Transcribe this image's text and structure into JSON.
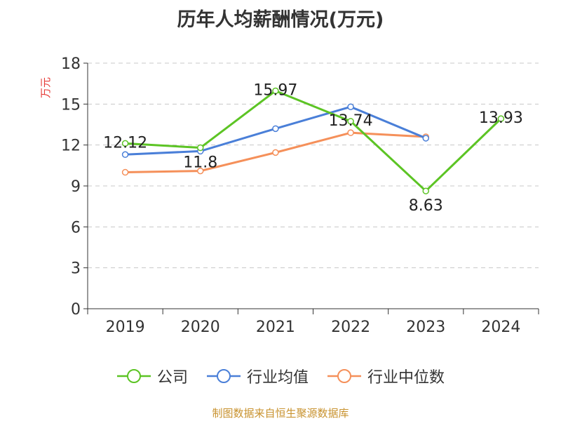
{
  "chart_data": {
    "type": "line",
    "title": "历年人均薪酬情况(万元)",
    "ylabel": "万元",
    "categories": [
      "2019",
      "2020",
      "2021",
      "2022",
      "2023",
      "2024"
    ],
    "ylim": [
      0,
      18
    ],
    "yticks": [
      0,
      3,
      6,
      9,
      12,
      15,
      18
    ],
    "grid": true,
    "legend_position": "bottom",
    "series": [
      {
        "name": "公司",
        "color": "#5cc424",
        "values": [
          12.12,
          11.8,
          15.97,
          13.74,
          8.63,
          13.93
        ],
        "labels": [
          "12.12",
          "11.8",
          "15.97",
          "13.74",
          "8.63",
          "13.93"
        ]
      },
      {
        "name": "行业均值",
        "color": "#4a7fd8",
        "values": [
          11.3,
          11.55,
          13.2,
          14.8,
          12.5,
          null
        ]
      },
      {
        "name": "行业中位数",
        "color": "#f5905a",
        "values": [
          10.0,
          10.1,
          11.45,
          12.9,
          12.6,
          null
        ]
      }
    ]
  },
  "source_text": "制图数据来自恒生聚源数据库"
}
